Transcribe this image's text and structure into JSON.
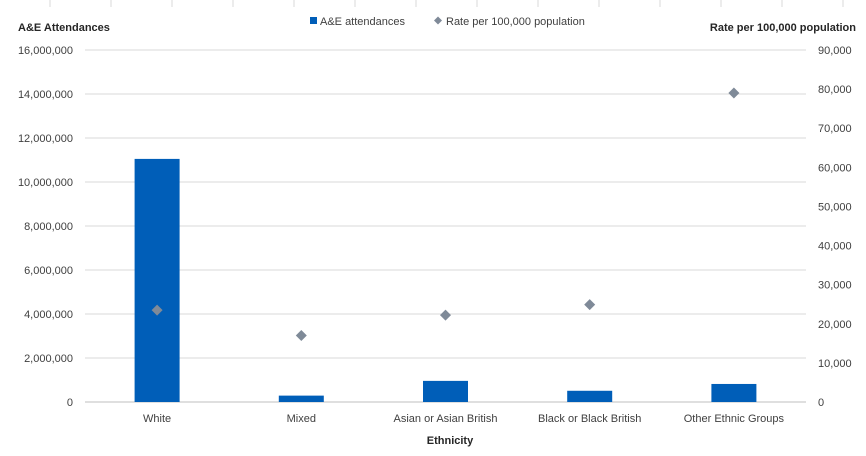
{
  "chart_data": {
    "type": "bar",
    "categories": [
      "White",
      "Mixed",
      "Asian or Asian British",
      "Black or Black British",
      "Other Ethnic Groups"
    ],
    "series": [
      {
        "name": "A&E attendances",
        "type": "bar",
        "axis": "left",
        "color": "#005EB8",
        "values": [
          11050000,
          290000,
          960000,
          510000,
          820000
        ]
      },
      {
        "name": "Rate per 100,000 population",
        "type": "scatter",
        "axis": "right",
        "color": "#7F8A98",
        "marker": "diamond",
        "values": [
          23500,
          17000,
          22200,
          24900,
          79000
        ]
      }
    ],
    "xlabel": "Ethnicity",
    "ylabel": "A&E Attendances",
    "y2label": "Rate per 100,000 population",
    "ylim": [
      0,
      16000000
    ],
    "y2lim": [
      0,
      90000
    ],
    "yticks": [
      "0",
      "2,000,000",
      "4,000,000",
      "6,000,000",
      "8,000,000",
      "10,000,000",
      "12,000,000",
      "14,000,000",
      "16,000,000"
    ],
    "y2ticks": [
      "0",
      "10,000",
      "20,000",
      "30,000",
      "40,000",
      "50,000",
      "60,000",
      "70,000",
      "80,000",
      "90,000"
    ],
    "grid": true,
    "legend": "top-center"
  }
}
